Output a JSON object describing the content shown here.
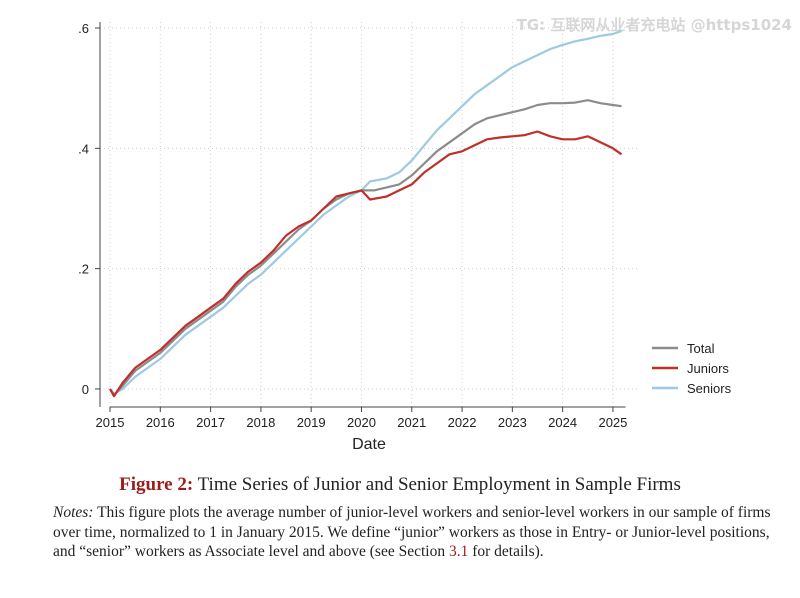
{
  "watermark": "TG: 互联网从业者充电站 @https1024",
  "chart_data": {
    "type": "line",
    "xlabel": "Date",
    "ylabel": "",
    "xlim": [
      2015.0,
      2025.25
    ],
    "ylim": [
      -0.03,
      0.61
    ],
    "x_ticks": [
      2015,
      2016,
      2017,
      2018,
      2019,
      2020,
      2021,
      2022,
      2023,
      2024,
      2025
    ],
    "x_tick_labels": [
      "2015",
      "2016",
      "2017",
      "2018",
      "2019",
      "2020",
      "2021",
      "2022",
      "2023",
      "2024",
      "2025"
    ],
    "y_ticks": [
      0,
      0.2,
      0.4,
      0.6
    ],
    "y_tick_labels": [
      "0",
      ".2",
      ".4",
      ".6"
    ],
    "grid": "dotted",
    "legend_position": "right",
    "series": [
      {
        "name": "Total",
        "color": "#8c8c8c",
        "points": [
          [
            2015.0,
            0.0
          ],
          [
            2015.08,
            -0.01
          ],
          [
            2015.25,
            0.005
          ],
          [
            2015.5,
            0.03
          ],
          [
            2015.75,
            0.045
          ],
          [
            2016.0,
            0.06
          ],
          [
            2016.25,
            0.08
          ],
          [
            2016.5,
            0.1
          ],
          [
            2016.75,
            0.115
          ],
          [
            2017.0,
            0.13
          ],
          [
            2017.25,
            0.145
          ],
          [
            2017.5,
            0.17
          ],
          [
            2017.75,
            0.19
          ],
          [
            2018.0,
            0.205
          ],
          [
            2018.25,
            0.225
          ],
          [
            2018.5,
            0.245
          ],
          [
            2018.75,
            0.265
          ],
          [
            2019.0,
            0.28
          ],
          [
            2019.25,
            0.3
          ],
          [
            2019.5,
            0.315
          ],
          [
            2019.75,
            0.325
          ],
          [
            2020.0,
            0.33
          ],
          [
            2020.25,
            0.33
          ],
          [
            2020.5,
            0.335
          ],
          [
            2020.75,
            0.34
          ],
          [
            2021.0,
            0.355
          ],
          [
            2021.25,
            0.375
          ],
          [
            2021.5,
            0.395
          ],
          [
            2021.75,
            0.41
          ],
          [
            2022.0,
            0.425
          ],
          [
            2022.25,
            0.44
          ],
          [
            2022.5,
            0.45
          ],
          [
            2022.75,
            0.455
          ],
          [
            2023.0,
            0.46
          ],
          [
            2023.25,
            0.465
          ],
          [
            2023.5,
            0.472
          ],
          [
            2023.75,
            0.475
          ],
          [
            2024.0,
            0.475
          ],
          [
            2024.25,
            0.476
          ],
          [
            2024.5,
            0.48
          ],
          [
            2024.75,
            0.475
          ],
          [
            2025.0,
            0.472
          ],
          [
            2025.17,
            0.47
          ]
        ]
      },
      {
        "name": "Juniors",
        "color": "#c0302b",
        "points": [
          [
            2015.0,
            0.0
          ],
          [
            2015.08,
            -0.012
          ],
          [
            2015.25,
            0.01
          ],
          [
            2015.5,
            0.035
          ],
          [
            2015.75,
            0.05
          ],
          [
            2016.0,
            0.065
          ],
          [
            2016.25,
            0.085
          ],
          [
            2016.5,
            0.105
          ],
          [
            2016.75,
            0.12
          ],
          [
            2017.0,
            0.135
          ],
          [
            2017.25,
            0.15
          ],
          [
            2017.5,
            0.175
          ],
          [
            2017.75,
            0.195
          ],
          [
            2018.0,
            0.21
          ],
          [
            2018.25,
            0.23
          ],
          [
            2018.5,
            0.255
          ],
          [
            2018.75,
            0.27
          ],
          [
            2019.0,
            0.28
          ],
          [
            2019.25,
            0.3
          ],
          [
            2019.5,
            0.32
          ],
          [
            2019.75,
            0.325
          ],
          [
            2020.0,
            0.33
          ],
          [
            2020.17,
            0.315
          ],
          [
            2020.5,
            0.32
          ],
          [
            2020.75,
            0.33
          ],
          [
            2021.0,
            0.34
          ],
          [
            2021.25,
            0.36
          ],
          [
            2021.5,
            0.375
          ],
          [
            2021.75,
            0.39
          ],
          [
            2022.0,
            0.395
          ],
          [
            2022.25,
            0.405
          ],
          [
            2022.5,
            0.415
          ],
          [
            2022.75,
            0.418
          ],
          [
            2023.0,
            0.42
          ],
          [
            2023.25,
            0.422
          ],
          [
            2023.5,
            0.428
          ],
          [
            2023.75,
            0.42
          ],
          [
            2024.0,
            0.415
          ],
          [
            2024.25,
            0.415
          ],
          [
            2024.5,
            0.42
          ],
          [
            2024.75,
            0.41
          ],
          [
            2025.0,
            0.4
          ],
          [
            2025.17,
            0.39
          ]
        ]
      },
      {
        "name": "Seniors",
        "color": "#9ecae1",
        "points": [
          [
            2015.0,
            0.0
          ],
          [
            2015.08,
            -0.008
          ],
          [
            2015.25,
            0.0
          ],
          [
            2015.5,
            0.02
          ],
          [
            2015.75,
            0.035
          ],
          [
            2016.0,
            0.05
          ],
          [
            2016.25,
            0.07
          ],
          [
            2016.5,
            0.09
          ],
          [
            2016.75,
            0.105
          ],
          [
            2017.0,
            0.12
          ],
          [
            2017.25,
            0.135
          ],
          [
            2017.5,
            0.155
          ],
          [
            2017.75,
            0.175
          ],
          [
            2018.0,
            0.19
          ],
          [
            2018.25,
            0.21
          ],
          [
            2018.5,
            0.23
          ],
          [
            2018.75,
            0.25
          ],
          [
            2019.0,
            0.27
          ],
          [
            2019.25,
            0.29
          ],
          [
            2019.5,
            0.305
          ],
          [
            2019.75,
            0.32
          ],
          [
            2020.0,
            0.33
          ],
          [
            2020.17,
            0.345
          ],
          [
            2020.5,
            0.35
          ],
          [
            2020.75,
            0.36
          ],
          [
            2021.0,
            0.38
          ],
          [
            2021.25,
            0.405
          ],
          [
            2021.5,
            0.43
          ],
          [
            2021.75,
            0.45
          ],
          [
            2022.0,
            0.47
          ],
          [
            2022.25,
            0.49
          ],
          [
            2022.5,
            0.505
          ],
          [
            2022.75,
            0.52
          ],
          [
            2023.0,
            0.535
          ],
          [
            2023.25,
            0.545
          ],
          [
            2023.5,
            0.555
          ],
          [
            2023.75,
            0.565
          ],
          [
            2024.0,
            0.572
          ],
          [
            2024.25,
            0.578
          ],
          [
            2024.5,
            0.582
          ],
          [
            2024.75,
            0.587
          ],
          [
            2025.0,
            0.59
          ],
          [
            2025.17,
            0.595
          ]
        ]
      }
    ]
  },
  "caption": {
    "label": "Figure 2:",
    "text": "Time Series of Junior and Senior Employment in Sample Firms"
  },
  "notes": {
    "label": "Notes:",
    "text_before": "This figure plots the average number of junior-level workers and senior-level workers in our sample of firms over time, normalized to 1 in January 2015.  We define “junior” workers as those in Entry- or Junior-level positions, and “senior” workers as Associate level and above (see Section ",
    "section_ref": "3.1",
    "text_after": " for details)."
  }
}
